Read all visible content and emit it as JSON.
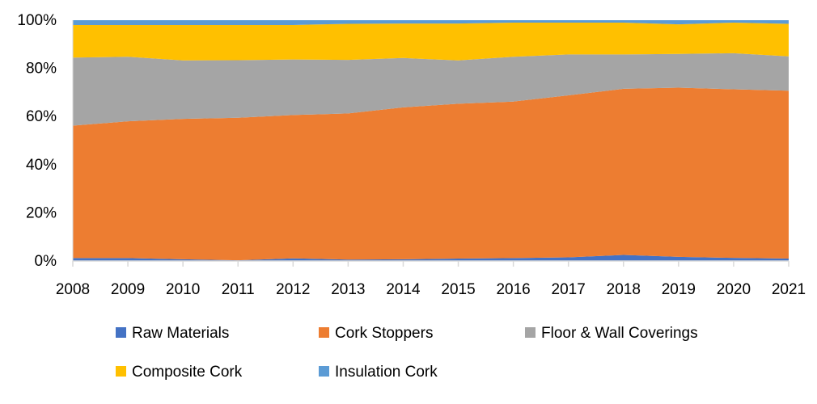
{
  "chart_data": {
    "type": "area",
    "stacked": "percent",
    "title": "",
    "xlabel": "",
    "ylabel": "",
    "x": [
      "2008",
      "2009",
      "2010",
      "2011",
      "2012",
      "2013",
      "2014",
      "2015",
      "2016",
      "2017",
      "2018",
      "2019",
      "2020",
      "2021"
    ],
    "ylim": [
      0,
      100
    ],
    "yticks": [
      "0%",
      "20%",
      "40%",
      "60%",
      "80%",
      "100%"
    ],
    "grid": false,
    "legend": "bottom",
    "series": [
      {
        "name": "Raw Materials",
        "color": "#4472C4",
        "values": [
          1.2,
          1.2,
          0.7,
          0.3,
          1.1,
          0.6,
          0.7,
          1.0,
          1.2,
          1.5,
          2.5,
          1.7,
          1.3,
          1.0
        ]
      },
      {
        "name": "Cork Stoppers",
        "color": "#ED7D31",
        "values": [
          55.0,
          56.8,
          58.3,
          59.2,
          59.5,
          60.7,
          63.1,
          64.3,
          65.0,
          67.3,
          69.0,
          70.3,
          70.0,
          69.7
        ]
      },
      {
        "name": "Floor & Wall Coverings",
        "color": "#A5A5A5",
        "values": [
          28.3,
          26.8,
          24.3,
          23.9,
          23.1,
          22.2,
          20.5,
          18.0,
          18.6,
          17.0,
          14.3,
          14.0,
          15.0,
          14.3
        ]
      },
      {
        "name": "Composite Cork",
        "color": "#FFC000",
        "values": [
          13.5,
          13.2,
          14.7,
          14.6,
          14.3,
          15.0,
          14.3,
          15.3,
          14.2,
          13.2,
          13.2,
          12.3,
          12.7,
          13.5
        ]
      },
      {
        "name": "Insulation Cork",
        "color": "#5B9BD5",
        "values": [
          2.0,
          2.0,
          2.0,
          2.0,
          2.0,
          1.5,
          1.4,
          1.4,
          1.0,
          1.0,
          1.0,
          1.7,
          1.0,
          1.5
        ]
      }
    ]
  }
}
